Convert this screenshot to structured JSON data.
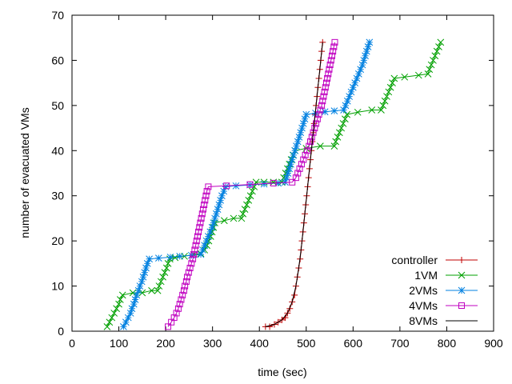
{
  "chart_data": {
    "type": "line",
    "title": "",
    "xlabel": "time (sec)",
    "ylabel": "number of evacuated VMs",
    "xlim": [
      0,
      900
    ],
    "ylim": [
      0,
      70
    ],
    "xticks": [
      0,
      100,
      200,
      300,
      400,
      500,
      600,
      700,
      800,
      900
    ],
    "yticks": [
      0,
      10,
      20,
      30,
      40,
      50,
      60,
      70
    ],
    "grid": false,
    "legend_position": "bottom-right",
    "series": [
      {
        "name": "controller",
        "color": "#c00000",
        "marker": "plus",
        "points": [
          [
            413,
            1
          ],
          [
            422,
            1
          ],
          [
            432,
            1.5
          ],
          [
            440,
            2
          ],
          [
            448,
            2.5
          ],
          [
            455,
            3
          ],
          [
            460,
            4
          ],
          [
            465,
            5
          ],
          [
            470,
            6.5
          ],
          [
            475,
            8
          ],
          [
            478,
            10
          ],
          [
            481,
            12
          ],
          [
            484,
            14
          ],
          [
            487,
            16
          ],
          [
            489,
            18
          ],
          [
            491,
            20
          ],
          [
            493,
            22
          ],
          [
            495,
            24
          ],
          [
            497,
            26
          ],
          [
            499,
            28
          ],
          [
            501,
            30
          ],
          [
            503,
            32
          ],
          [
            505,
            34
          ],
          [
            507,
            36
          ],
          [
            509,
            38
          ],
          [
            511,
            40
          ],
          [
            513,
            42
          ],
          [
            515,
            44
          ],
          [
            517,
            46
          ],
          [
            519,
            48
          ],
          [
            521,
            50
          ],
          [
            523,
            52
          ],
          [
            525,
            54
          ],
          [
            527,
            56
          ],
          [
            529,
            58
          ],
          [
            531,
            60
          ],
          [
            533,
            62
          ],
          [
            535,
            64
          ]
        ]
      },
      {
        "name": "1VM",
        "color": "#00a000",
        "marker": "x",
        "points": [
          [
            75,
            1
          ],
          [
            80,
            2
          ],
          [
            85,
            3
          ],
          [
            90,
            4
          ],
          [
            95,
            5
          ],
          [
            100,
            6
          ],
          [
            103,
            7
          ],
          [
            108,
            8
          ],
          [
            130,
            8.5
          ],
          [
            150,
            8.5
          ],
          [
            170,
            9
          ],
          [
            183,
            9
          ],
          [
            186,
            10
          ],
          [
            190,
            11
          ],
          [
            194,
            12
          ],
          [
            198,
            13
          ],
          [
            202,
            14
          ],
          [
            205,
            15
          ],
          [
            209,
            16
          ],
          [
            220,
            16.3
          ],
          [
            240,
            16.6
          ],
          [
            260,
            17
          ],
          [
            275,
            17.2
          ],
          [
            283,
            18
          ],
          [
            288,
            19
          ],
          [
            292,
            20
          ],
          [
            296,
            21
          ],
          [
            299,
            22
          ],
          [
            302,
            23
          ],
          [
            305,
            24
          ],
          [
            325,
            24.5
          ],
          [
            345,
            25
          ],
          [
            362,
            25
          ],
          [
            365,
            26
          ],
          [
            369,
            27
          ],
          [
            373,
            28
          ],
          [
            377,
            29
          ],
          [
            381,
            30
          ],
          [
            385,
            31
          ],
          [
            389,
            32
          ],
          [
            393,
            33
          ],
          [
            410,
            33
          ],
          [
            430,
            33
          ],
          [
            448,
            33
          ],
          [
            452,
            34
          ],
          [
            456,
            35
          ],
          [
            460,
            36
          ],
          [
            464,
            37
          ],
          [
            468,
            38
          ],
          [
            472,
            39
          ],
          [
            476,
            40
          ],
          [
            500,
            40.5
          ],
          [
            530,
            41
          ],
          [
            560,
            41
          ],
          [
            563,
            42
          ],
          [
            567,
            43
          ],
          [
            571,
            44
          ],
          [
            575,
            45
          ],
          [
            579,
            46
          ],
          [
            583,
            47
          ],
          [
            587,
            48
          ],
          [
            610,
            48.5
          ],
          [
            640,
            49
          ],
          [
            660,
            49
          ],
          [
            664,
            50
          ],
          [
            668,
            51
          ],
          [
            672,
            52
          ],
          [
            676,
            53
          ],
          [
            680,
            54
          ],
          [
            684,
            55
          ],
          [
            688,
            56
          ],
          [
            710,
            56.3
          ],
          [
            740,
            56.7
          ],
          [
            760,
            57
          ],
          [
            763,
            58
          ],
          [
            767,
            59
          ],
          [
            771,
            60
          ],
          [
            775,
            61
          ],
          [
            779,
            62
          ],
          [
            783,
            63
          ],
          [
            787,
            64
          ]
        ]
      },
      {
        "name": "2VMs",
        "color": "#0080e0",
        "marker": "star",
        "points": [
          [
            110,
            1
          ],
          [
            115,
            2
          ],
          [
            120,
            3
          ],
          [
            125,
            4
          ],
          [
            128,
            5
          ],
          [
            132,
            6
          ],
          [
            135,
            7
          ],
          [
            138,
            8
          ],
          [
            142,
            9
          ],
          [
            145,
            10
          ],
          [
            149,
            11
          ],
          [
            152,
            12
          ],
          [
            155,
            13
          ],
          [
            158,
            14
          ],
          [
            161,
            15
          ],
          [
            165,
            16
          ],
          [
            185,
            16.2
          ],
          [
            210,
            16.4
          ],
          [
            230,
            16.6
          ],
          [
            255,
            16.8
          ],
          [
            275,
            17
          ],
          [
            279,
            18
          ],
          [
            283,
            19
          ],
          [
            287,
            20
          ],
          [
            291,
            21
          ],
          [
            295,
            22
          ],
          [
            299,
            23
          ],
          [
            302,
            24
          ],
          [
            305,
            25
          ],
          [
            308,
            26
          ],
          [
            311,
            27
          ],
          [
            314,
            28
          ],
          [
            317,
            29
          ],
          [
            320,
            30
          ],
          [
            324,
            31
          ],
          [
            328,
            32
          ],
          [
            350,
            32.2
          ],
          [
            380,
            32.4
          ],
          [
            410,
            32.6
          ],
          [
            440,
            32.8
          ],
          [
            455,
            33
          ],
          [
            458,
            34
          ],
          [
            461,
            35
          ],
          [
            464,
            36
          ],
          [
            467,
            37
          ],
          [
            470,
            38
          ],
          [
            473,
            39
          ],
          [
            476,
            40
          ],
          [
            479,
            41
          ],
          [
            482,
            42
          ],
          [
            485,
            43
          ],
          [
            488,
            44
          ],
          [
            491,
            45
          ],
          [
            494,
            46
          ],
          [
            497,
            47
          ],
          [
            500,
            48
          ],
          [
            520,
            48.3
          ],
          [
            540,
            48.6
          ],
          [
            560,
            48.8
          ],
          [
            580,
            49
          ],
          [
            584,
            50
          ],
          [
            588,
            51
          ],
          [
            592,
            52
          ],
          [
            596,
            53
          ],
          [
            600,
            54
          ],
          [
            604,
            55
          ],
          [
            608,
            56
          ],
          [
            612,
            57
          ],
          [
            616,
            58
          ],
          [
            620,
            59
          ],
          [
            623,
            60
          ],
          [
            626,
            61
          ],
          [
            629,
            62
          ],
          [
            632,
            63
          ],
          [
            635,
            64
          ]
        ]
      },
      {
        "name": "4VMs",
        "color": "#c000c0",
        "marker": "square",
        "points": [
          [
            205,
            1
          ],
          [
            212,
            2
          ],
          [
            218,
            3
          ],
          [
            223,
            4
          ],
          [
            227,
            5
          ],
          [
            230,
            6
          ],
          [
            233,
            7
          ],
          [
            236,
            8
          ],
          [
            239,
            9
          ],
          [
            241,
            10
          ],
          [
            244,
            11
          ],
          [
            246,
            12
          ],
          [
            249,
            13
          ],
          [
            252,
            14
          ],
          [
            255,
            15
          ],
          [
            258,
            16
          ],
          [
            260,
            17
          ],
          [
            262,
            18
          ],
          [
            264,
            19
          ],
          [
            266,
            20
          ],
          [
            268,
            21
          ],
          [
            270,
            22
          ],
          [
            272,
            23
          ],
          [
            274,
            24
          ],
          [
            276,
            25
          ],
          [
            278,
            26
          ],
          [
            280,
            27
          ],
          [
            282,
            28
          ],
          [
            284,
            29
          ],
          [
            286,
            30
          ],
          [
            288,
            31
          ],
          [
            291,
            32
          ],
          [
            330,
            32.2
          ],
          [
            380,
            32.5
          ],
          [
            430,
            32.8
          ],
          [
            470,
            33
          ],
          [
            478,
            34
          ],
          [
            482,
            35
          ],
          [
            486,
            36
          ],
          [
            490,
            37
          ],
          [
            494,
            38
          ],
          [
            498,
            39
          ],
          [
            502,
            40
          ],
          [
            506,
            41
          ],
          [
            509,
            42
          ],
          [
            512,
            43
          ],
          [
            515,
            44
          ],
          [
            518,
            45
          ],
          [
            521,
            46
          ],
          [
            524,
            47
          ],
          [
            527,
            48
          ],
          [
            530,
            49
          ],
          [
            533,
            50
          ],
          [
            535,
            51
          ],
          [
            537,
            52
          ],
          [
            539,
            53
          ],
          [
            541,
            54
          ],
          [
            543,
            55
          ],
          [
            545,
            56
          ],
          [
            547,
            57
          ],
          [
            549,
            58
          ],
          [
            551,
            59
          ],
          [
            553,
            60
          ],
          [
            555,
            61
          ],
          [
            557,
            62
          ],
          [
            559,
            63
          ],
          [
            561,
            64
          ]
        ]
      },
      {
        "name": "8VMs",
        "color": "#000000",
        "marker": "none",
        "points": [
          [
            413,
            1
          ],
          [
            432,
            1.5
          ],
          [
            448,
            2.5
          ],
          [
            460,
            4
          ],
          [
            470,
            6.5
          ],
          [
            478,
            10
          ],
          [
            484,
            14
          ],
          [
            489,
            18
          ],
          [
            493,
            22
          ],
          [
            497,
            26
          ],
          [
            501,
            30
          ],
          [
            505,
            34
          ],
          [
            509,
            38
          ],
          [
            513,
            42
          ],
          [
            517,
            46
          ],
          [
            521,
            50
          ],
          [
            525,
            54
          ],
          [
            529,
            58
          ],
          [
            533,
            62
          ],
          [
            535,
            64
          ]
        ]
      }
    ]
  }
}
